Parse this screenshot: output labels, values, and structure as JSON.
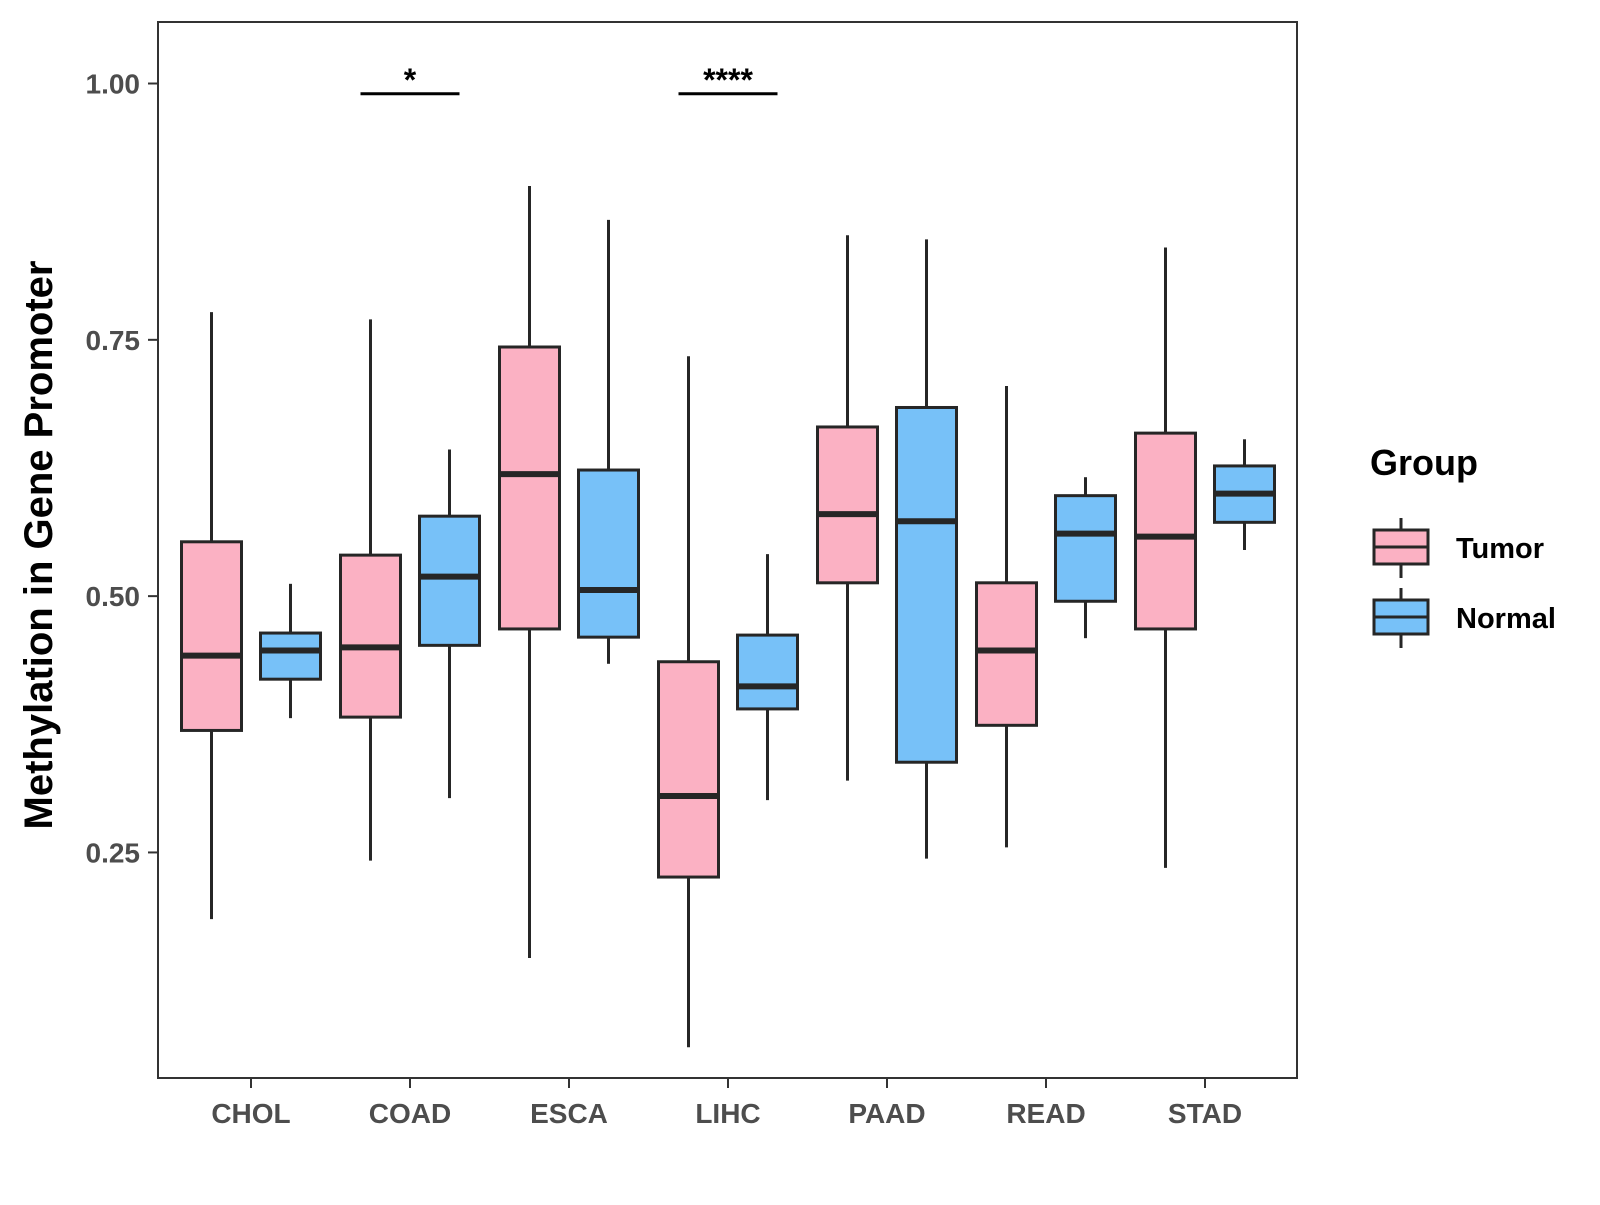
{
  "chart_data": {
    "type": "boxplot",
    "title": "",
    "xlabel": "",
    "ylabel": "Methylation in Gene Promoter",
    "ylim": [
      0.03,
      1.06
    ],
    "y_ticks": [
      0.25,
      0.5,
      0.75,
      1.0
    ],
    "y_tick_labels": [
      "0.25",
      "0.50",
      "0.75",
      "1.00"
    ],
    "categories": [
      "CHOL",
      "COAD",
      "ESCA",
      "LIHC",
      "PAAD",
      "READ",
      "STAD"
    ],
    "grid": false,
    "legend": {
      "title": "Group",
      "position": "right"
    },
    "series": [
      {
        "name": "Tumor",
        "color": "#fbb1c3",
        "boxes": [
          {
            "category": "CHOL",
            "min": 0.185,
            "q1": 0.369,
            "median": 0.442,
            "q3": 0.553,
            "max": 0.777
          },
          {
            "category": "COAD",
            "min": 0.242,
            "q1": 0.382,
            "median": 0.45,
            "q3": 0.54,
            "max": 0.77
          },
          {
            "category": "ESCA",
            "min": 0.147,
            "q1": 0.468,
            "median": 0.619,
            "q3": 0.743,
            "max": 0.9
          },
          {
            "category": "LIHC",
            "min": 0.06,
            "q1": 0.226,
            "median": 0.305,
            "q3": 0.436,
            "max": 0.734
          },
          {
            "category": "PAAD",
            "min": 0.32,
            "q1": 0.513,
            "median": 0.58,
            "q3": 0.665,
            "max": 0.852
          },
          {
            "category": "READ",
            "min": 0.255,
            "q1": 0.374,
            "median": 0.447,
            "q3": 0.513,
            "max": 0.705
          },
          {
            "category": "STAD",
            "min": 0.235,
            "q1": 0.468,
            "median": 0.558,
            "q3": 0.659,
            "max": 0.84
          }
        ]
      },
      {
        "name": "Normal",
        "color": "#77c1f8",
        "boxes": [
          {
            "category": "CHOL",
            "min": 0.381,
            "q1": 0.419,
            "median": 0.447,
            "q3": 0.464,
            "max": 0.512
          },
          {
            "category": "COAD",
            "min": 0.303,
            "q1": 0.452,
            "median": 0.519,
            "q3": 0.578,
            "max": 0.643
          },
          {
            "category": "ESCA",
            "min": 0.434,
            "q1": 0.46,
            "median": 0.506,
            "q3": 0.623,
            "max": 0.867
          },
          {
            "category": "LIHC",
            "min": 0.301,
            "q1": 0.39,
            "median": 0.412,
            "q3": 0.462,
            "max": 0.541
          },
          {
            "category": "PAAD",
            "min": 0.244,
            "q1": 0.338,
            "median": 0.573,
            "q3": 0.684,
            "max": 0.848
          },
          {
            "category": "READ",
            "min": 0.459,
            "q1": 0.495,
            "median": 0.561,
            "q3": 0.598,
            "max": 0.616
          },
          {
            "category": "STAD",
            "min": 0.545,
            "q1": 0.572,
            "median": 0.6,
            "q3": 0.627,
            "max": 0.653
          }
        ]
      }
    ],
    "significance": [
      {
        "category": "COAD",
        "label": "*",
        "y": 0.99
      },
      {
        "category": "LIHC",
        "label": "****",
        "y": 0.99
      }
    ]
  }
}
